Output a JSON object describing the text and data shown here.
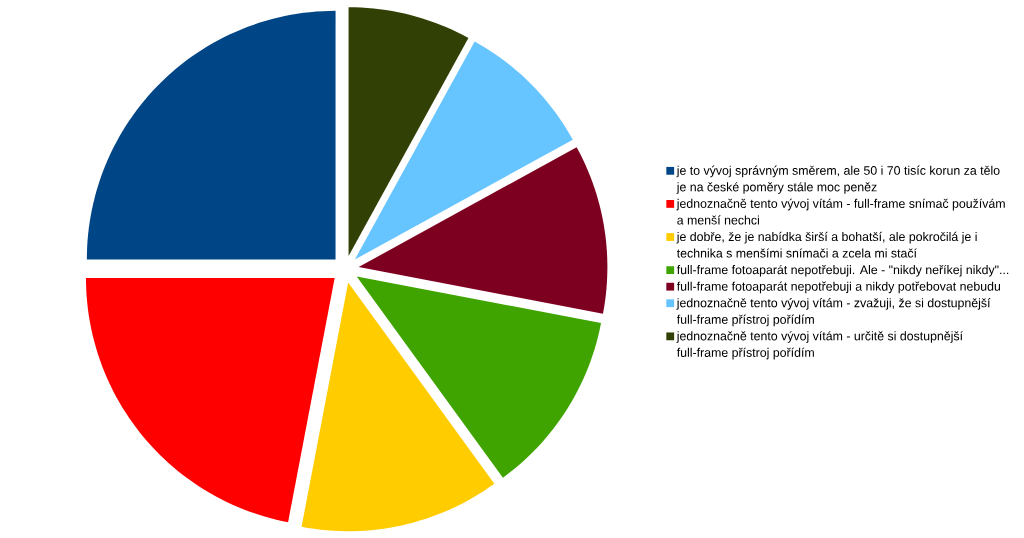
{
  "chart_data": {
    "type": "pie",
    "categories": [
      "je to vývoj správným směrem, ale 50 i 70 tisíc korun za tělo je na české poměry stále moc peněz",
      "jednoznačně tento vývoj vítám - full-frame snímač používám a menší nechci",
      "je dobře, že je nabídka širší a bohatší, ale pokročilá je i technika s menšími snímači a zcela mi stačí",
      "full-frame fotoaparát nepotřebuji. Ale - \"nikdy neříkej nikdy\"...",
      "full-frame fotoaparát nepotřebuji a nikdy potřebovat nebudu",
      "jednoznačně tento vývoj vítám - zvažuji, že si dostupnější full-frame přístroj pořídím",
      "jednoznačně tento vývoj vítám - určitě si dostupnější full-frame přístroj pořídím"
    ],
    "values": [
      25,
      22,
      13,
      12,
      11,
      9,
      8
    ],
    "colors": [
      "#004586",
      "#ff0000",
      "#ffcc00",
      "#3fa400",
      "#7e0021",
      "#66c4ff",
      "#314004"
    ],
    "legend": "right"
  }
}
